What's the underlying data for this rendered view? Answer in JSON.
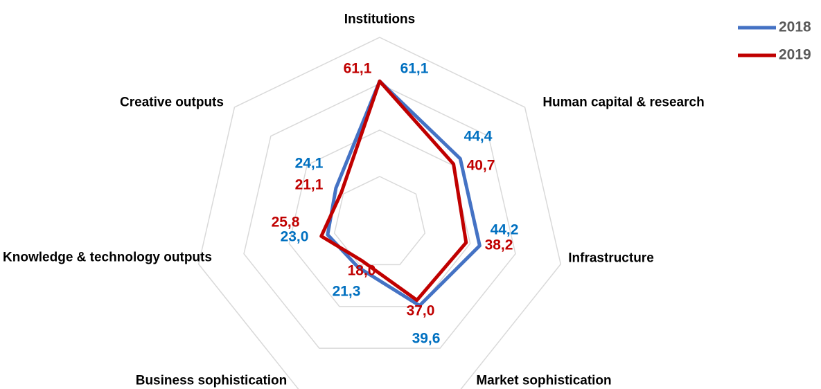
{
  "chart_data": {
    "type": "radar",
    "categories": [
      "Institutions",
      "Human capital & research",
      "Infrastructure",
      "Market sophistication",
      "Business sophistication",
      "Knowledge & technology outputs",
      "Creative outputs"
    ],
    "series": [
      {
        "name": "2018",
        "color": "#4472c4",
        "label_color": "#0070c0",
        "values": [
          61.1,
          44.4,
          44.2,
          39.6,
          21.3,
          23.0,
          24.1
        ],
        "value_labels": [
          "61,1",
          "44,4",
          "44,2",
          "39,6",
          "21,3",
          "23,0",
          "24,1"
        ]
      },
      {
        "name": "2019",
        "color": "#c00000",
        "label_color": "#c00000",
        "values": [
          61.1,
          40.7,
          38.2,
          37.0,
          18.0,
          25.8,
          21.1
        ],
        "value_labels": [
          "61,1",
          "40,7",
          "38,2",
          "37,0",
          "18,0",
          "25,8",
          "21,1"
        ]
      }
    ],
    "rlim": [
      0,
      80
    ],
    "rticks": [
      20,
      40,
      60,
      80
    ],
    "grid": true,
    "legend": "top-right"
  }
}
